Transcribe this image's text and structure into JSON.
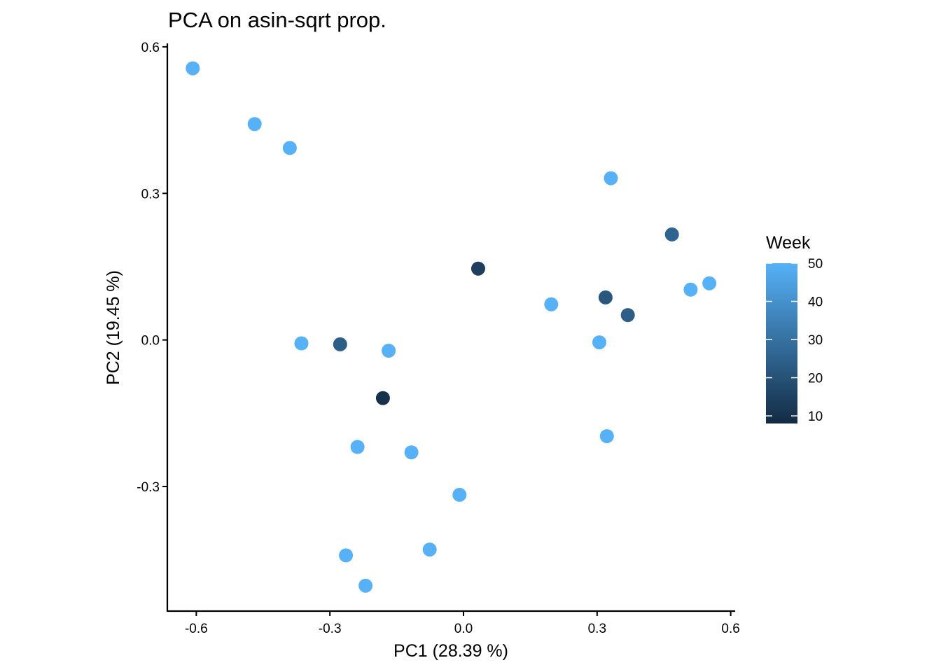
{
  "chart_data": {
    "type": "scatter",
    "title": "PCA on asin-sqrt prop.",
    "xlabel": "PC1 (28.39 %)",
    "ylabel": "PC2 (19.45 %)",
    "xlim": [
      -0.665,
      0.61
    ],
    "ylim": [
      -0.555,
      0.607
    ],
    "xticks": [
      -0.6,
      -0.3,
      0.0,
      0.3,
      0.6
    ],
    "xtick_labels": [
      "-0.6",
      "-0.3",
      "0.0",
      "0.3",
      "0.6"
    ],
    "yticks": [
      -0.3,
      0.0,
      0.3,
      0.6
    ],
    "ytick_labels": [
      "-0.3",
      "0.0",
      "0.3",
      "0.6"
    ],
    "grid": false,
    "legend": {
      "title": "Week",
      "position": "right",
      "type": "colorbar",
      "range": [
        8,
        50
      ],
      "ticks": [
        10,
        20,
        30,
        40,
        50
      ],
      "tick_labels": [
        "10",
        "20",
        "30",
        "40",
        "50"
      ],
      "color_low": "#132B43",
      "color_high": "#56B1F7"
    },
    "points": [
      {
        "x": -0.608,
        "y": 0.556,
        "week": 50
      },
      {
        "x": -0.469,
        "y": 0.442,
        "week": 50
      },
      {
        "x": -0.39,
        "y": 0.393,
        "week": 50
      },
      {
        "x": 0.331,
        "y": 0.331,
        "week": 50
      },
      {
        "x": 0.468,
        "y": 0.216,
        "week": 26
      },
      {
        "x": 0.033,
        "y": 0.146,
        "week": 14
      },
      {
        "x": 0.197,
        "y": 0.073,
        "week": 50
      },
      {
        "x": 0.319,
        "y": 0.087,
        "week": 22
      },
      {
        "x": 0.369,
        "y": 0.051,
        "week": 24
      },
      {
        "x": 0.51,
        "y": 0.103,
        "week": 50
      },
      {
        "x": 0.552,
        "y": 0.116,
        "week": 50
      },
      {
        "x": 0.305,
        "y": -0.005,
        "week": 50
      },
      {
        "x": -0.364,
        "y": -0.007,
        "week": 50
      },
      {
        "x": -0.277,
        "y": -0.009,
        "week": 24
      },
      {
        "x": -0.168,
        "y": -0.022,
        "week": 50
      },
      {
        "x": -0.181,
        "y": -0.119,
        "week": 10
      },
      {
        "x": 0.322,
        "y": -0.197,
        "week": 50
      },
      {
        "x": -0.238,
        "y": -0.219,
        "week": 50
      },
      {
        "x": -0.117,
        "y": -0.23,
        "week": 50
      },
      {
        "x": -0.009,
        "y": -0.317,
        "week": 50
      },
      {
        "x": -0.076,
        "y": -0.429,
        "week": 50
      },
      {
        "x": -0.264,
        "y": -0.441,
        "week": 50
      },
      {
        "x": -0.22,
        "y": -0.503,
        "week": 50
      }
    ]
  }
}
